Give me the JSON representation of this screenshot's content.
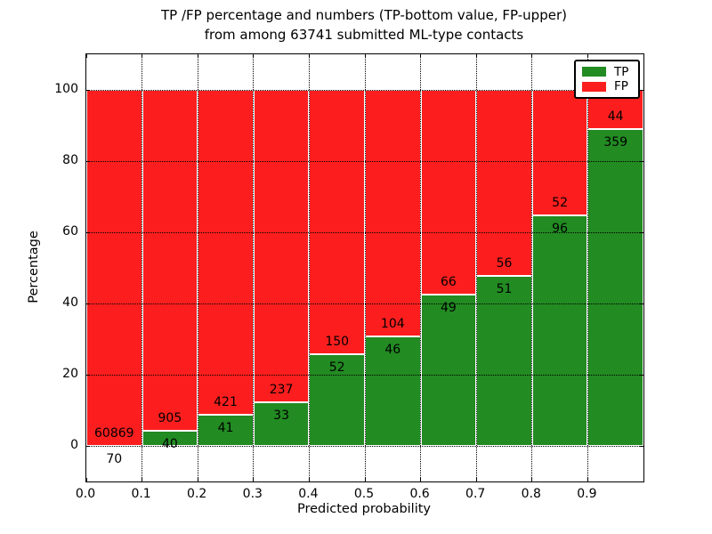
{
  "title_line1": "TP /FP percentage and numbers (TP-bottom value, FP-upper)",
  "title_line2": "from among 63741 submitted ML-type contacts",
  "chart_data": {
    "type": "bar",
    "subtype": "stacked-percentage-histogram",
    "title": "TP /FP percentage and numbers (TP-bottom value, FP-upper) from among 63741 submitted ML-type contacts",
    "xlabel": "Predicted probability",
    "ylabel": "Percentage",
    "total_contacts": 63741,
    "xlim": [
      0.0,
      1.0
    ],
    "ylim": [
      -10,
      110
    ],
    "bin_edges": [
      0.0,
      0.1,
      0.2,
      0.3,
      0.4,
      0.5,
      0.6,
      0.7,
      0.8,
      0.9,
      1.0
    ],
    "xticks": [
      0.0,
      0.1,
      0.2,
      0.3,
      0.4,
      0.5,
      0.6,
      0.7,
      0.8,
      0.9
    ],
    "xtick_labels": [
      "0.0",
      "0.1",
      "0.2",
      "0.3",
      "0.4",
      "0.5",
      "0.6",
      "0.7",
      "0.8",
      "0.9"
    ],
    "yticks": [
      0,
      20,
      40,
      60,
      80,
      100
    ],
    "grid": "dotted",
    "legend_position": "upper right",
    "bar_normalization": "each bin stacked to 100%",
    "series": [
      {
        "name": "TP",
        "color": "#228B22",
        "counts": [
          70,
          40,
          41,
          33,
          52,
          46,
          49,
          51,
          96,
          359
        ]
      },
      {
        "name": "FP",
        "color": "#FC1E1E",
        "counts": [
          60869,
          905,
          421,
          237,
          150,
          104,
          66,
          56,
          52,
          44
        ]
      }
    ],
    "tp_percent_per_bin": [
      0.11,
      4.23,
      8.87,
      12.22,
      25.74,
      30.67,
      42.61,
      47.66,
      64.86,
      89.08
    ]
  }
}
